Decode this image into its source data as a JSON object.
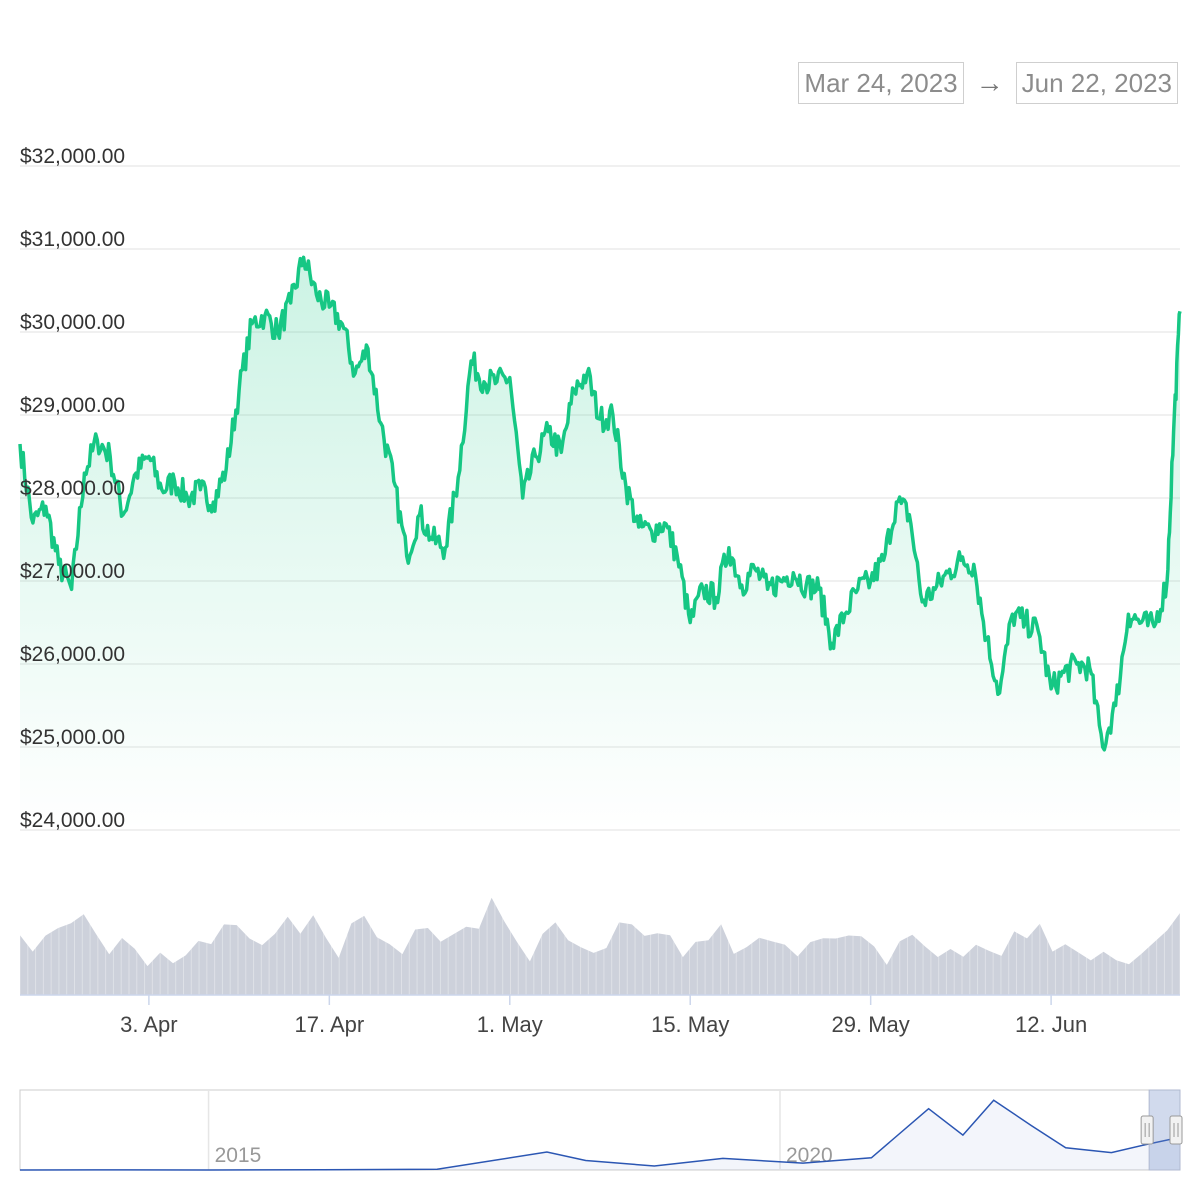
{
  "range": {
    "from": "Mar 24, 2023",
    "arrow": "→",
    "to": "Jun 22, 2023"
  },
  "colors": {
    "price_line": "#16c784",
    "volume": "#cdd1db",
    "navigator_line": "#2b56b3",
    "grid": "#ececec"
  },
  "chart_data": {
    "type": "line",
    "ylim": [
      24000,
      32000
    ],
    "y_ticks": [
      "$32,000.00",
      "$31,000.00",
      "$30,000.00",
      "$29,000.00",
      "$28,000.00",
      "$27,000.00",
      "$26,000.00",
      "$25,000.00",
      "$24,000.00"
    ],
    "x_ticks": [
      "3. Apr",
      "17. Apr",
      "1. May",
      "15. May",
      "29. May",
      "12. Jun"
    ],
    "x_tick_days": [
      10,
      24,
      38,
      52,
      66,
      80
    ],
    "xlim_days": [
      0,
      90
    ],
    "x_origin": "Mar 24, 2023",
    "series": [
      {
        "x": [
          0,
          1,
          2,
          3,
          4,
          5,
          6,
          7,
          8,
          9,
          10,
          11,
          12,
          13,
          14,
          15,
          16,
          17,
          18,
          19,
          20,
          21,
          22,
          23,
          24,
          25,
          26,
          27,
          28,
          29,
          30,
          31,
          32,
          33,
          34,
          35,
          36,
          37,
          38,
          39,
          40,
          41,
          42,
          43,
          44,
          45,
          46,
          47,
          48,
          49,
          50,
          51,
          52,
          53,
          54,
          55,
          56,
          57,
          58,
          59,
          60,
          61,
          62,
          63,
          64,
          65,
          66,
          67,
          68,
          69,
          70,
          71,
          72,
          73,
          74,
          75,
          76,
          77,
          78,
          79,
          80,
          81,
          82,
          83,
          84,
          85,
          86,
          87,
          88,
          89,
          89.5,
          90
        ],
        "values": [
          28650,
          27700,
          27900,
          27200,
          26900,
          28300,
          28700,
          28500,
          27800,
          28300,
          28500,
          28100,
          28200,
          28000,
          28100,
          27950,
          28350,
          29300,
          30100,
          30200,
          30000,
          30350,
          30900,
          30450,
          30300,
          30100,
          29500,
          29800,
          28900,
          28200,
          27300,
          27800,
          27500,
          27400,
          28250,
          29650,
          29400,
          29400,
          29450,
          28000,
          28500,
          28800,
          28550,
          29300,
          29500,
          28950,
          29000,
          28150,
          27650,
          27600,
          27700,
          27300,
          26500,
          26900,
          26800,
          27400,
          26950,
          27150,
          26900,
          27000,
          27100,
          26950,
          26900,
          26250,
          26600,
          26900,
          27000,
          27250,
          27950,
          27800,
          26750,
          26900,
          27100,
          27250,
          27200,
          26300,
          25650,
          26600,
          26500,
          26400,
          25700,
          25900,
          26000,
          25950,
          25000,
          25500,
          26600,
          26500,
          26450,
          27000,
          28800,
          30250
        ]
      }
    ],
    "volume_profile": [
      0.55,
      0.4,
      0.55,
      0.5,
      0.6,
      0.7,
      0.5,
      0.3,
      0.45,
      0.35,
      0.3,
      0.4,
      0.25,
      0.3,
      0.5,
      0.45,
      0.6,
      0.55,
      0.45,
      0.4,
      0.55,
      0.6,
      0.45,
      0.65,
      0.45,
      0.35,
      0.55,
      0.7,
      0.5,
      0.4,
      0.35,
      0.55,
      0.5,
      0.45,
      0.5,
      0.55,
      0.6,
      0.85,
      0.65,
      0.4,
      0.3,
      0.45,
      0.6,
      0.5,
      0.4,
      0.35,
      0.45,
      0.6,
      0.55,
      0.5,
      0.55,
      0.55,
      0.3,
      0.45,
      0.5,
      0.55,
      0.4,
      0.35,
      0.45,
      0.4,
      0.4,
      0.3,
      0.4,
      0.5,
      0.45,
      0.5,
      0.55,
      0.45,
      0.3,
      0.5,
      0.5,
      0.45,
      0.35,
      0.4,
      0.3,
      0.45,
      0.4,
      0.3,
      0.5,
      0.45,
      0.55,
      0.4,
      0.45,
      0.35,
      0.3,
      0.35,
      0.3,
      0.25,
      0.3,
      0.4,
      0.55,
      0.7
    ]
  },
  "navigator": {
    "ticks": [
      "2015",
      "2020"
    ],
    "tick_years": [
      2015,
      2020
    ],
    "year_range": [
      2013.35,
      2023.5
    ],
    "points": [
      [
        2013.35,
        30
      ],
      [
        2014,
        50
      ],
      [
        2015,
        45
      ],
      [
        2016,
        200
      ],
      [
        2017,
        700
      ],
      [
        2017.96,
        17000
      ],
      [
        2018.3,
        9000
      ],
      [
        2018.9,
        3800
      ],
      [
        2019.5,
        11000
      ],
      [
        2020.2,
        6500
      ],
      [
        2020.8,
        11500
      ],
      [
        2021.3,
        58000
      ],
      [
        2021.6,
        33000
      ],
      [
        2021.87,
        66000
      ],
      [
        2022.2,
        42000
      ],
      [
        2022.5,
        21000
      ],
      [
        2022.9,
        16500
      ],
      [
        2023.2,
        24000
      ],
      [
        2023.47,
        30250
      ],
      [
        2023.5,
        28500
      ]
    ],
    "ymax": 70000,
    "selection_years": [
      2023.23,
      2023.5
    ]
  }
}
